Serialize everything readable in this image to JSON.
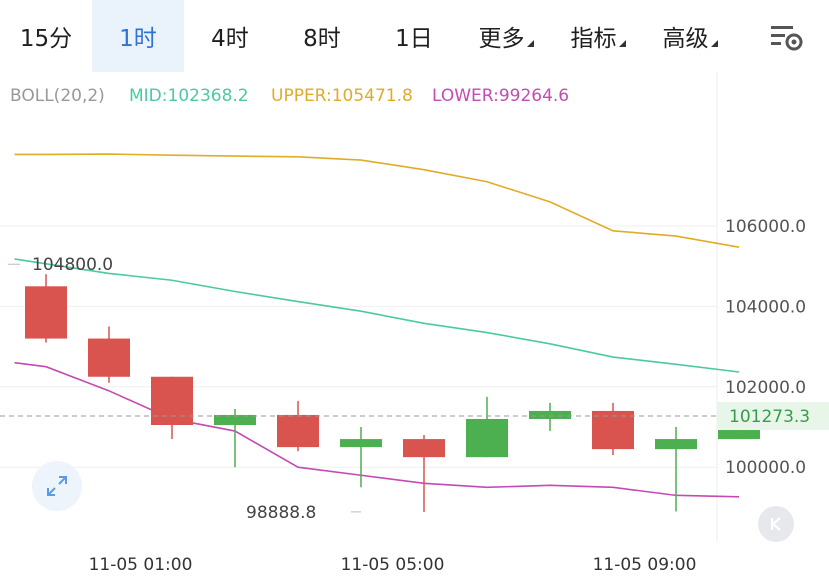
{
  "tabs": [
    {
      "label": "15分",
      "active": false,
      "dropdown": false
    },
    {
      "label": "1时",
      "active": true,
      "dropdown": false
    },
    {
      "label": "4时",
      "active": false,
      "dropdown": false
    },
    {
      "label": "8时",
      "active": false,
      "dropdown": false
    },
    {
      "label": "1日",
      "active": false,
      "dropdown": false
    },
    {
      "label": "更多",
      "active": false,
      "dropdown": true
    },
    {
      "label": "指标",
      "active": false,
      "dropdown": true
    },
    {
      "label": "高级",
      "active": false,
      "dropdown": true
    }
  ],
  "indicator": {
    "label": "BOLL(20,2)",
    "mid": "MID:102368.2",
    "upper": "UPPER:105471.8",
    "lower": "LOWER:99264.6"
  },
  "icons": {
    "settings": "chart-settings-icon",
    "expand": "expand-arrows-icon",
    "k": "k-letter-icon"
  },
  "colors": {
    "up": "#4caf50",
    "down": "#d9534f",
    "mid": "#4cc9a4",
    "upper": "#e0ac28",
    "lower": "#c44ab4",
    "active_tab_bg": "#eaf2fb",
    "active_tab_text": "#2e74d6",
    "price_tag": "#3a9a4a"
  },
  "chart_data": {
    "type": "candlestick",
    "y_ticks": [
      "106000.0",
      "104000.0",
      "102000.0",
      "100000.0"
    ],
    "y_tick_values": [
      106000,
      104000,
      102000,
      100000
    ],
    "ylim": [
      98140,
      109830
    ],
    "x_ticks": [
      {
        "label": "11-05 01:00",
        "index": 1.5
      },
      {
        "label": "11-05 05:00",
        "index": 5.5
      },
      {
        "label": "11-05 09:00",
        "index": 9.5
      }
    ],
    "current_price": {
      "label": "101273.3",
      "value": 101273.3
    },
    "annotations": [
      {
        "label": "104800.0",
        "value": 104800.0,
        "index": 0
      },
      {
        "label": "98888.8",
        "value": 98888.8,
        "index": 5
      }
    ],
    "candles": [
      {
        "open": 104500,
        "close": 103200,
        "high": 104800,
        "low": 103100
      },
      {
        "open": 103200,
        "close": 102250,
        "high": 103500,
        "low": 102100
      },
      {
        "open": 102250,
        "close": 101050,
        "high": 102250,
        "low": 100700
      },
      {
        "open": 101050,
        "close": 101300,
        "high": 101450,
        "low": 100000
      },
      {
        "open": 101300,
        "close": 100500,
        "high": 101650,
        "low": 100400
      },
      {
        "open": 100500,
        "close": 100700,
        "high": 101000,
        "low": 99500
      },
      {
        "open": 100700,
        "close": 100250,
        "high": 100800,
        "low": 98888.8
      },
      {
        "open": 100250,
        "close": 101200,
        "high": 101750,
        "low": 100250
      },
      {
        "open": 101200,
        "close": 101400,
        "high": 101600,
        "low": 100900
      },
      {
        "open": 101400,
        "close": 100450,
        "high": 101600,
        "low": 100300
      },
      {
        "open": 100450,
        "close": 100700,
        "high": 101000,
        "low": 98900
      },
      {
        "open": 100700,
        "close": 101273.3,
        "high": 101520,
        "low": 100700
      }
    ],
    "boll": {
      "upper_x": [
        -0.5,
        0,
        1,
        2,
        3,
        4,
        5,
        6,
        7,
        8,
        9,
        10,
        11
      ],
      "upper": [
        107780,
        107780,
        107790,
        107760,
        107740,
        107720,
        107640,
        107400,
        107100,
        106600,
        105880,
        105750,
        105471.8
      ],
      "mid_x": [
        -0.5,
        0,
        1,
        2,
        3,
        4,
        5,
        6,
        7,
        8,
        9,
        10,
        11
      ],
      "mid": [
        105180,
        105060,
        104820,
        104650,
        104370,
        104120,
        103880,
        103580,
        103350,
        103070,
        102740,
        102560,
        102368.2
      ],
      "lower_x": [
        -0.5,
        0,
        1,
        2,
        3,
        4,
        5,
        6,
        7,
        8,
        9,
        10,
        11
      ],
      "lower": [
        102600,
        102500,
        101900,
        101200,
        100900,
        100000,
        99800,
        99600,
        99500,
        99550,
        99500,
        99300,
        99264.6
      ]
    }
  }
}
